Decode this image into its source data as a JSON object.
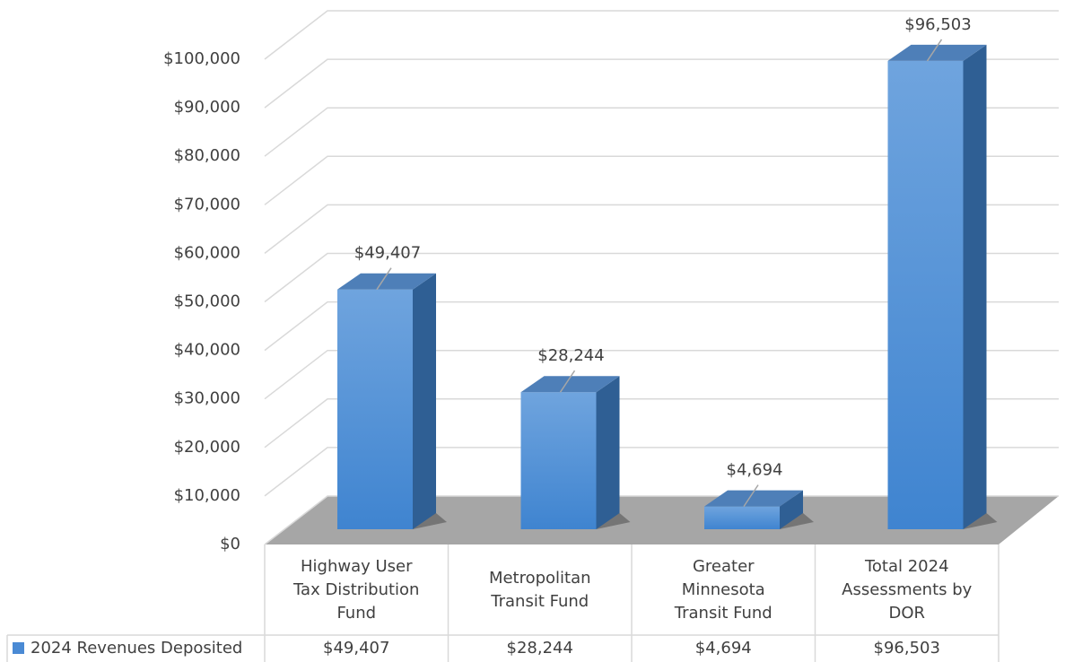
{
  "chart_data": {
    "type": "bar3d",
    "categories": [
      "Highway User Tax Distribution Fund",
      "Metropolitan Transit Fund",
      "Greater Minnesota Transit Fund",
      "Total 2024 Assessments by DOR"
    ],
    "series": [
      {
        "name": "2024 Revenues Deposited",
        "color": "#4a8ad4",
        "values": [
          49407,
          28244,
          4694,
          96503
        ],
        "value_labels": [
          "$49,407",
          "$28,244",
          "$4,694",
          "$96,503"
        ]
      }
    ],
    "ylim": [
      0,
      100000
    ],
    "yticks": [
      {
        "value": 0,
        "label": "$0"
      },
      {
        "value": 10000,
        "label": "$10,000"
      },
      {
        "value": 20000,
        "label": "$20,000"
      },
      {
        "value": 30000,
        "label": "$30,000"
      },
      {
        "value": 40000,
        "label": "$40,000"
      },
      {
        "value": 50000,
        "label": "$50,000"
      },
      {
        "value": 60000,
        "label": "$60,000"
      },
      {
        "value": 70000,
        "label": "$70,000"
      },
      {
        "value": 80000,
        "label": "$80,000"
      },
      {
        "value": 90000,
        "label": "$90,000"
      },
      {
        "value": 100000,
        "label": "$100,000"
      }
    ],
    "grid": true,
    "data_table": true
  }
}
